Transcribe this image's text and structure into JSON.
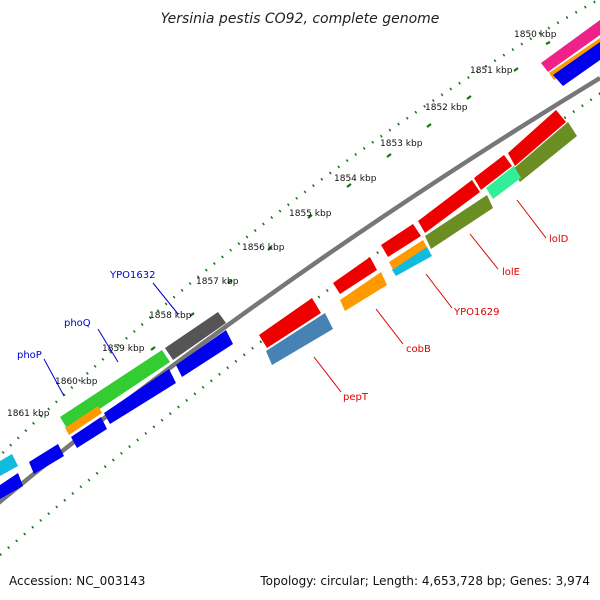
{
  "title": "Yersinia pestis CO92, complete genome",
  "footer": {
    "accession": "Accession: NC_003143",
    "summary": "Topology: circular; Length: 4,653,728 bp; Genes: 3,974"
  },
  "ticks": [
    "1850 kbp",
    "1851 kbp",
    "1852 kbp",
    "1853 kbp",
    "1854 kbp",
    "1855 kbp",
    "1856 kbp",
    "1857 kbp",
    "1858 kbp",
    "1859 kbp",
    "1860 kbp",
    "1861 kbp"
  ],
  "gene_labels_forward": [
    "YPO1632",
    "phoQ",
    "phoP"
  ],
  "gene_labels_reverse": [
    "lolD",
    "lolE",
    "YPO1629",
    "cobB",
    "pepT"
  ],
  "colors": {
    "red": "#ee0000",
    "olive": "#6b8e23",
    "mint": "#33ee99",
    "cyan": "#11bbdd",
    "orange": "#ff9900",
    "steelblue": "#4682b4",
    "blue": "#0000ee",
    "green": "#33cc33",
    "gray": "#555555",
    "magenta": "#ee2288",
    "forward_label": "#0000cc",
    "reverse_label": "#dd0000",
    "tick": "#117711",
    "backbone": "#888888"
  }
}
